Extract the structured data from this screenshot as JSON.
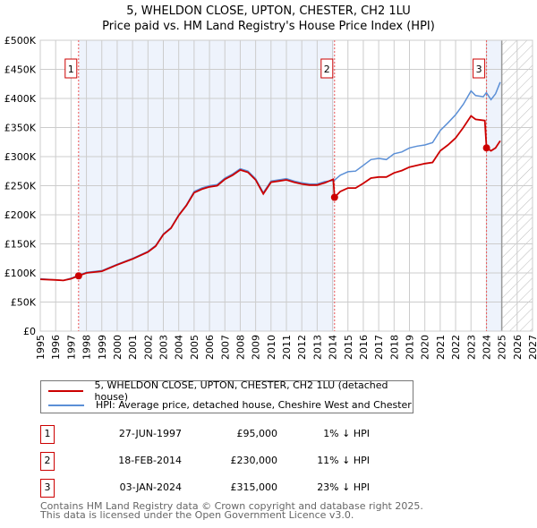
{
  "title_line1": "5, WHELDON CLOSE, UPTON, CHESTER, CH2 1LU",
  "title_line2": "Price paid vs. HM Land Registry's House Price Index (HPI)",
  "colors": {
    "property": "#cc0000",
    "hpi": "#5b8fd6",
    "shade": "#eef3fc"
  },
  "chart_data": {
    "type": "line",
    "title": "5, WHELDON CLOSE, UPTON, CHESTER, CH2 1LU — Price paid vs. HM Land Registry's House Price Index (HPI)",
    "xlim": [
      1995,
      2027
    ],
    "ylim": [
      0,
      500000
    ],
    "x_ticks": [
      "1995",
      "1996",
      "1997",
      "1998",
      "1999",
      "2000",
      "2001",
      "2002",
      "2003",
      "2004",
      "2005",
      "2006",
      "2007",
      "2008",
      "2009",
      "2010",
      "2011",
      "2012",
      "2013",
      "2014",
      "2015",
      "2016",
      "2017",
      "2018",
      "2019",
      "2020",
      "2021",
      "2022",
      "2023",
      "2024",
      "2025",
      "2026",
      "2027"
    ],
    "y_ticks": [
      "£0",
      "£50K",
      "£100K",
      "£150K",
      "£200K",
      "£250K",
      "£300K",
      "£350K",
      "£400K",
      "£450K",
      "£500K"
    ],
    "forecast_from": 2025.0,
    "series": [
      {
        "name": "HPI: Average price, detached house, Cheshire West and Chester",
        "color": "#5b8fd6",
        "x": [
          1995,
          1996,
          1996.5,
          1997,
          1997.5,
          1998,
          1999,
          2000,
          2001,
          2002,
          2002.5,
          2003,
          2003.5,
          2004,
          2004.5,
          2005,
          2005.5,
          2006,
          2006.5,
          2007,
          2007.5,
          2008,
          2008.5,
          2009,
          2009.5,
          2010,
          2010.5,
          2011,
          2011.5,
          2012,
          2012.5,
          2013,
          2013.5,
          2014.1,
          2014.5,
          2015,
          2015.5,
          2016,
          2016.5,
          2017,
          2017.5,
          2018,
          2018.5,
          2019,
          2019.5,
          2020,
          2020.5,
          2021,
          2021.5,
          2022,
          2022.5,
          2023,
          2023.3,
          2023.8,
          2024,
          2024.3,
          2024.6,
          2024.9
        ],
        "y": [
          90000,
          88000,
          87000,
          91000,
          96000,
          101000,
          104000,
          115000,
          125000,
          137000,
          147000,
          167000,
          178000,
          200000,
          217000,
          240000,
          246000,
          250000,
          252000,
          263000,
          270000,
          279000,
          275000,
          262000,
          238000,
          258000,
          260000,
          262000,
          258000,
          255000,
          253000,
          253000,
          257000,
          259000,
          268000,
          274000,
          275000,
          285000,
          295000,
          297000,
          295000,
          305000,
          308000,
          315000,
          318000,
          320000,
          324000,
          345000,
          358000,
          372000,
          390000,
          413000,
          405000,
          403000,
          410000,
          398000,
          408000,
          428000
        ]
      },
      {
        "name": "5, WHELDON CLOSE, UPTON, CHESTER, CH2 1LU (detached house)",
        "color": "#cc0000",
        "x": [
          1995,
          1996,
          1996.5,
          1997,
          1997.48,
          1998,
          1999,
          2000,
          2001,
          2002,
          2002.5,
          2003,
          2003.5,
          2004,
          2004.5,
          2005,
          2005.5,
          2006,
          2006.5,
          2007,
          2007.5,
          2008,
          2008.5,
          2009,
          2009.5,
          2010,
          2010.5,
          2011,
          2011.5,
          2012,
          2012.5,
          2013,
          2013.5,
          2014.05,
          2014.13,
          2014.5,
          2015,
          2015.5,
          2016,
          2016.5,
          2017,
          2017.5,
          2018,
          2018.5,
          2019,
          2019.5,
          2020,
          2020.5,
          2021,
          2021.5,
          2022,
          2022.5,
          2023,
          2023.3,
          2023.9,
          2024.01,
          2024.3,
          2024.6,
          2024.9
        ],
        "y": [
          89000,
          88000,
          87000,
          90000,
          95000,
          100000,
          103000,
          114000,
          124000,
          136000,
          146000,
          166000,
          177000,
          199000,
          216000,
          238000,
          244000,
          248000,
          250000,
          261000,
          268000,
          277000,
          273000,
          260000,
          236000,
          256000,
          258000,
          260000,
          256000,
          253000,
          251000,
          251000,
          255000,
          261000,
          230000,
          240000,
          246000,
          246000,
          254000,
          263000,
          265000,
          265000,
          272000,
          276000,
          282000,
          285000,
          288000,
          290000,
          310000,
          320000,
          332000,
          350000,
          370000,
          364000,
          362000,
          315000,
          310000,
          315000,
          327000
        ]
      }
    ],
    "sales": [
      {
        "label": "1",
        "date": "27-JUN-1997",
        "x": 1997.49,
        "price": "£95,000",
        "value": 95000,
        "hpi": "1% ↓ HPI"
      },
      {
        "label": "2",
        "date": "18-FEB-2014",
        "x": 2014.13,
        "price": "£230,000",
        "value": 230000,
        "hpi": "11% ↓ HPI"
      },
      {
        "label": "3",
        "date": "03-JAN-2024",
        "x": 2024.01,
        "price": "£315,000",
        "value": 315000,
        "hpi": "23% ↓ HPI"
      }
    ]
  },
  "legend": {
    "property": "5, WHELDON CLOSE, UPTON, CHESTER, CH2 1LU (detached house)",
    "hpi": "HPI: Average price, detached house, Cheshire West and Chester"
  },
  "footer": {
    "line1": "Contains HM Land Registry data © Crown copyright and database right 2025.",
    "line2": "This data is licensed under the Open Government Licence v3.0."
  }
}
